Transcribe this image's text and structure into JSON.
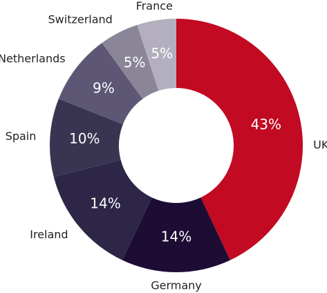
{
  "chart_data": {
    "type": "donut",
    "categories": [
      "UK",
      "Germany",
      "Ireland",
      "Spain",
      "Netherlands",
      "Switzerland",
      "France"
    ],
    "values": [
      43,
      14,
      14,
      10,
      9,
      5,
      5
    ],
    "value_labels": [
      "43%",
      "14%",
      "14%",
      "10%",
      "9%",
      "5%",
      "5%"
    ],
    "colors": [
      "#c20a22",
      "#1d0c34",
      "#2d2646",
      "#3a3453",
      "#5d5775",
      "#8b8598",
      "#b4afbf"
    ]
  }
}
